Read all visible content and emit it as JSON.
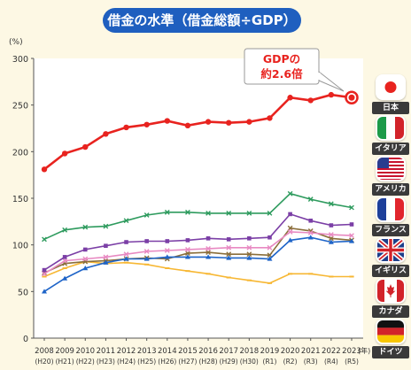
{
  "title": "借金の水準（借金総額÷GDP）",
  "chart_data": {
    "type": "line",
    "title": "借金の水準（借金総額÷GDP）",
    "ylabel": "(%)",
    "xunit": "(年)",
    "ylim": [
      0,
      300
    ],
    "yticks": [
      0,
      50,
      100,
      150,
      200,
      250,
      300
    ],
    "grid": false,
    "legend_position": "right",
    "x": [
      "2008",
      "2009",
      "2010",
      "2011",
      "2012",
      "2013",
      "2014",
      "2015",
      "2016",
      "2017",
      "2018",
      "2019",
      "2020",
      "2021",
      "2022",
      "2023"
    ],
    "x_sub": [
      "(H20)",
      "(H21)",
      "(H22)",
      "(H23)",
      "(H24)",
      "(H25)",
      "(H26)",
      "(H27)",
      "(H28)",
      "(H29)",
      "(H30)",
      "(R1)",
      "(R2)",
      "(R3)",
      "(R4)",
      "(R5)"
    ],
    "series": [
      {
        "name": "日本",
        "color": "#e8231f",
        "values": [
          181,
          198,
          205,
          219,
          226,
          229,
          233,
          228,
          232,
          231,
          232,
          236,
          258,
          255,
          261,
          258
        ]
      },
      {
        "name": "イタリア",
        "color": "#2e9b5e",
        "values": [
          106,
          116,
          119,
          120,
          126,
          132,
          135,
          135,
          134,
          134,
          134,
          134,
          155,
          149,
          144,
          140
        ]
      },
      {
        "name": "アメリカ",
        "color": "#7b3fa6",
        "values": [
          73,
          87,
          95,
          99,
          103,
          104,
          104,
          105,
          107,
          106,
          107,
          108,
          133,
          126,
          121,
          122
        ]
      },
      {
        "name": "フランス",
        "color": "#e889c2",
        "values": [
          69,
          83,
          85,
          87,
          90,
          93,
          94,
          95,
          96,
          97,
          97,
          97,
          114,
          113,
          111,
          110
        ]
      },
      {
        "name": "イギリス",
        "color": "#1e64c8",
        "values": [
          50,
          64,
          75,
          81,
          85,
          85,
          87,
          87,
          87,
          86,
          86,
          85,
          105,
          108,
          103,
          104
        ]
      },
      {
        "name": "カナダ",
        "color": "#8a6e3a",
        "values": [
          70,
          80,
          82,
          83,
          85,
          86,
          85,
          91,
          92,
          90,
          90,
          89,
          118,
          115,
          107,
          105
        ]
      },
      {
        "name": "ドイツ",
        "color": "#f7b733",
        "values": [
          66,
          75,
          82,
          80,
          81,
          79,
          75,
          72,
          69,
          65,
          62,
          59,
          69,
          69,
          66,
          66
        ]
      }
    ],
    "annotation": "GDPの\n約2.6倍"
  },
  "annotation_lines": [
    "GDPの",
    "約2.6倍"
  ],
  "legend": [
    {
      "label": "日本",
      "flag": "japan-flag"
    },
    {
      "label": "イタリア",
      "flag": "italy-flag"
    },
    {
      "label": "アメリカ",
      "flag": "usa-flag"
    },
    {
      "label": "フランス",
      "flag": "france-flag"
    },
    {
      "label": "イギリス",
      "flag": "uk-flag"
    },
    {
      "label": "カナダ",
      "flag": "canada-flag"
    },
    {
      "label": "ドイツ",
      "flag": "germany-flag"
    }
  ]
}
